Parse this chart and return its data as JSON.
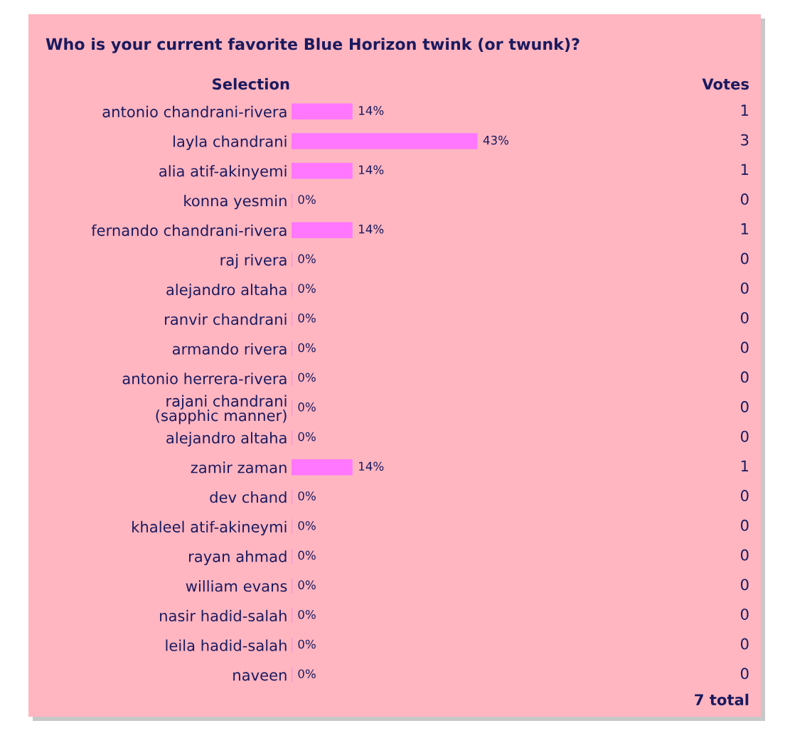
{
  "chart_data": {
    "type": "bar",
    "orientation": "horizontal",
    "title": "Who is your current favorite Blue Horizon twink (or twunk)?",
    "ylabel": "Selection",
    "categories": [
      "antonio chandrani-rivera",
      "layla chandrani",
      "alia atif-akinyemi",
      "konna yesmin",
      "fernando chandrani-rivera",
      "raj rivera",
      "alejandro altaha",
      "ranvir chandrani",
      "armando rivera",
      "antonio herrera-rivera",
      "rajani chandrani (sapphic manner)",
      "alejandro altaha",
      "zamir zaman",
      "dev chand",
      "khaleel atif-akineymi",
      "rayan ahmad",
      "william evans",
      "nasir hadid-salah",
      "leila hadid-salah",
      "naveen"
    ],
    "values": [
      14,
      43,
      14,
      0,
      14,
      0,
      0,
      0,
      0,
      0,
      0,
      0,
      14,
      0,
      0,
      0,
      0,
      0,
      0,
      0
    ],
    "value_labels": [
      "14%",
      "43%",
      "14%",
      "0%",
      "14%",
      "0%",
      "0%",
      "0%",
      "0%",
      "0%",
      "0%",
      "0%",
      "14%",
      "0%",
      "0%",
      "0%",
      "0%",
      "0%",
      "0%",
      "0%"
    ],
    "color": "#ff77ff",
    "tick_labels": "y",
    "grid": false,
    "annotations": [
      "1",
      "3",
      "1",
      "0",
      "1",
      "0",
      "0",
      "0",
      "0",
      "0",
      "0",
      "0",
      "1",
      "0",
      "0",
      "0",
      "0",
      "0",
      "0",
      "0",
      "Votes",
      "7 total"
    ]
  }
}
